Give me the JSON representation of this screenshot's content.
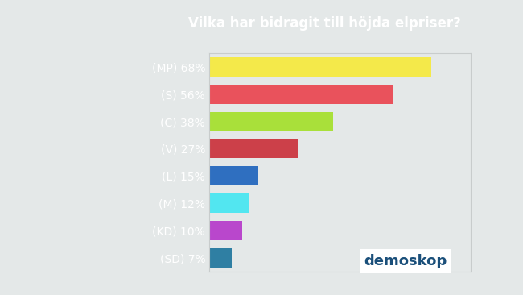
{
  "chart_data": {
    "type": "bar",
    "title": "Vilka har bidragit till höjda elpriser?",
    "orientation": "horizontal",
    "categories": [
      "(MP) 68%",
      "(S) 56%",
      "(C) 38%",
      "(V) 27%",
      "(L) 15%",
      "(M) 12%",
      "(KD) 10%",
      "(SD) 7%"
    ],
    "values": [
      68,
      56,
      38,
      27,
      15,
      12,
      10,
      7
    ],
    "colors": [
      "#f4e94a",
      "#e9525c",
      "#a9e03a",
      "#cc4049",
      "#2f6fc0",
      "#52e6f0",
      "#b947cc",
      "#2f7fa3"
    ],
    "xlim": [
      0,
      80
    ],
    "tick_labels": "y",
    "grid": false,
    "annotations": [
      "demoskop"
    ]
  }
}
